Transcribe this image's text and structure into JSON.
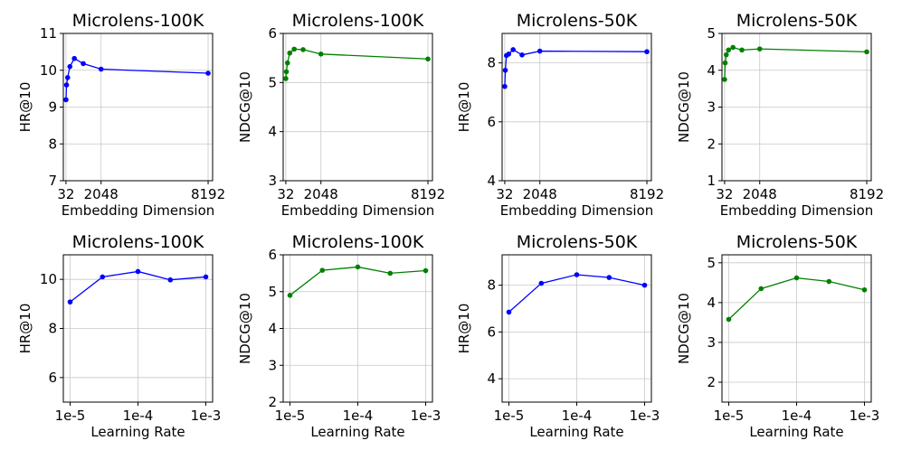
{
  "chart_data": [
    {
      "type": "line",
      "title": "Microlens-100K",
      "xlabel": "Embedding Dimension",
      "ylabel": "HR@10",
      "color": "#0000ff",
      "x_scale": "linear",
      "xlim": [
        -120,
        8450
      ],
      "ylim": [
        7,
        11
      ],
      "xticks": [
        32,
        2048,
        8192
      ],
      "xtick_labels": [
        "32",
        "2048",
        "8192"
      ],
      "yticks": [
        7,
        8,
        9,
        10,
        11
      ],
      "ytick_labels": [
        "7",
        "8",
        "9",
        "10",
        "11"
      ],
      "series": [
        {
          "name": "HR@10",
          "x": [
            32,
            64,
            128,
            256,
            512,
            1024,
            2048,
            8192
          ],
          "y": [
            9.2,
            9.6,
            9.8,
            10.1,
            10.32,
            10.18,
            10.03,
            9.92
          ]
        }
      ]
    },
    {
      "type": "line",
      "title": "Microlens-100K",
      "xlabel": "Embedding Dimension",
      "ylabel": "NDCG@10",
      "color": "#008000",
      "x_scale": "linear",
      "xlim": [
        -120,
        8450
      ],
      "ylim": [
        3,
        6
      ],
      "xticks": [
        32,
        2048,
        8192
      ],
      "xtick_labels": [
        "32",
        "2048",
        "8192"
      ],
      "yticks": [
        3,
        4,
        5,
        6
      ],
      "ytick_labels": [
        "3",
        "4",
        "5",
        "6"
      ],
      "series": [
        {
          "name": "NDCG@10",
          "x": [
            32,
            64,
            128,
            256,
            512,
            1024,
            2048,
            8192
          ],
          "y": [
            5.08,
            5.22,
            5.4,
            5.6,
            5.68,
            5.67,
            5.58,
            5.48
          ]
        }
      ]
    },
    {
      "type": "line",
      "title": "Microlens-50K",
      "xlabel": "Embedding Dimension",
      "ylabel": "HR@10",
      "color": "#0000ff",
      "x_scale": "linear",
      "xlim": [
        -120,
        8450
      ],
      "ylim": [
        4,
        9
      ],
      "xticks": [
        32,
        2048,
        8192
      ],
      "xtick_labels": [
        "32",
        "2048",
        "8192"
      ],
      "yticks": [
        4,
        6,
        8
      ],
      "ytick_labels": [
        "4",
        "6",
        "8"
      ],
      "series": [
        {
          "name": "HR@10",
          "x": [
            32,
            64,
            128,
            256,
            512,
            1024,
            2048,
            8192
          ],
          "y": [
            7.2,
            7.75,
            8.25,
            8.3,
            8.45,
            8.27,
            8.4,
            8.38
          ]
        }
      ]
    },
    {
      "type": "line",
      "title": "Microlens-50K",
      "xlabel": "Embedding Dimension",
      "ylabel": "NDCG@10",
      "color": "#008000",
      "x_scale": "linear",
      "xlim": [
        -120,
        8450
      ],
      "ylim": [
        1,
        5
      ],
      "xticks": [
        32,
        2048,
        8192
      ],
      "xtick_labels": [
        "32",
        "2048",
        "8192"
      ],
      "yticks": [
        1,
        2,
        3,
        4,
        5
      ],
      "ytick_labels": [
        "1",
        "2",
        "3",
        "4",
        "5"
      ],
      "series": [
        {
          "name": "NDCG@10",
          "x": [
            32,
            64,
            128,
            256,
            512,
            1024,
            2048,
            8192
          ],
          "y": [
            3.75,
            4.2,
            4.42,
            4.55,
            4.62,
            4.55,
            4.58,
            4.5
          ]
        }
      ]
    },
    {
      "type": "line",
      "title": "Microlens-100K",
      "xlabel": "Learning Rate",
      "ylabel": "HR@10",
      "color": "#0000ff",
      "x_scale": "log",
      "xlim": [
        -5.1,
        -2.9
      ],
      "ylim": [
        5,
        11
      ],
      "xticks": [
        -5,
        -4,
        -3
      ],
      "xtick_labels": [
        "1e-5",
        "1e-4",
        "1e-3"
      ],
      "yticks": [
        6,
        8,
        10
      ],
      "ytick_labels": [
        "6",
        "8",
        "10"
      ],
      "series": [
        {
          "name": "HR@10",
          "x": [
            1e-05,
            3e-05,
            0.0001,
            0.0003,
            0.001
          ],
          "y": [
            9.08,
            10.1,
            10.32,
            9.98,
            10.1
          ]
        }
      ]
    },
    {
      "type": "line",
      "title": "Microlens-100K",
      "xlabel": "Learning Rate",
      "ylabel": "NDCG@10",
      "color": "#008000",
      "x_scale": "log",
      "xlim": [
        -5.1,
        -2.9
      ],
      "ylim": [
        2,
        6
      ],
      "xticks": [
        -5,
        -4,
        -3
      ],
      "xtick_labels": [
        "1e-5",
        "1e-4",
        "1e-3"
      ],
      "yticks": [
        2,
        3,
        4,
        5,
        6
      ],
      "ytick_labels": [
        "2",
        "3",
        "4",
        "5",
        "6"
      ],
      "series": [
        {
          "name": "NDCG@10",
          "x": [
            1e-05,
            3e-05,
            0.0001,
            0.0003,
            0.001
          ],
          "y": [
            4.9,
            5.58,
            5.67,
            5.5,
            5.57
          ]
        }
      ]
    },
    {
      "type": "line",
      "title": "Microlens-50K",
      "xlabel": "Learning Rate",
      "ylabel": "HR@10",
      "color": "#0000ff",
      "x_scale": "log",
      "xlim": [
        -5.1,
        -2.9
      ],
      "ylim": [
        3,
        9.3
      ],
      "xticks": [
        -5,
        -4,
        -3
      ],
      "xtick_labels": [
        "1e-5",
        "1e-4",
        "1e-3"
      ],
      "yticks": [
        4,
        6,
        8
      ],
      "ytick_labels": [
        "4",
        "6",
        "8"
      ],
      "series": [
        {
          "name": "HR@10",
          "x": [
            1e-05,
            3e-05,
            0.0001,
            0.0003,
            0.001
          ],
          "y": [
            6.85,
            8.08,
            8.45,
            8.33,
            8.0
          ]
        }
      ]
    },
    {
      "type": "line",
      "title": "Microlens-50K",
      "xlabel": "Learning Rate",
      "ylabel": "NDCG@10",
      "color": "#008000",
      "x_scale": "log",
      "xlim": [
        -5.1,
        -2.9
      ],
      "ylim": [
        1.5,
        5.2
      ],
      "xticks": [
        -5,
        -4,
        -3
      ],
      "xtick_labels": [
        "1e-5",
        "1e-4",
        "1e-3"
      ],
      "yticks": [
        2,
        3,
        4,
        5
      ],
      "ytick_labels": [
        "2",
        "3",
        "4",
        "5"
      ],
      "series": [
        {
          "name": "NDCG@10",
          "x": [
            1e-05,
            3e-05,
            0.0001,
            0.0003,
            0.001
          ],
          "y": [
            3.58,
            4.35,
            4.62,
            4.53,
            4.32
          ]
        }
      ]
    }
  ]
}
